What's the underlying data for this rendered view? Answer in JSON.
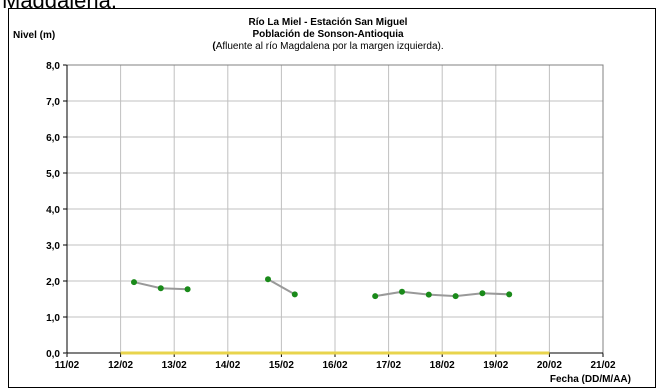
{
  "page": {
    "top_text": "Magdalena."
  },
  "chart_data": {
    "type": "line",
    "title": "Río La Miel  - Estación San Miguel",
    "subtitle": "Población de Sonson-Antioquia",
    "subtitle2_bold": "(",
    "subtitle2_rest": "Afluente al río Magdalena por la margen izquierda).",
    "ylabel": "Nivel (m)",
    "xlabel": "Fecha (DD/M/AA)",
    "ylim": [
      0,
      8
    ],
    "yticks": [
      "0,0",
      "1,0",
      "2,0",
      "3,0",
      "4,0",
      "5,0",
      "6,0",
      "7,0",
      "8,0"
    ],
    "xlim": [
      11,
      21
    ],
    "xticks": [
      "11/02",
      "12/02",
      "13/02",
      "14/02",
      "15/02",
      "16/02",
      "17/02",
      "18/02",
      "19/02",
      "20/02",
      "21/02"
    ],
    "grid": true,
    "series": [
      {
        "color": "#999999",
        "marker_color": "#1a8a1a",
        "segments": [
          [
            [
              12.25,
              1.97
            ],
            [
              12.75,
              1.8
            ],
            [
              13.25,
              1.77
            ]
          ],
          [
            [
              14.75,
              2.05
            ],
            [
              15.25,
              1.63
            ]
          ],
          [
            [
              16.75,
              1.58
            ],
            [
              17.25,
              1.7
            ],
            [
              17.75,
              1.62
            ],
            [
              18.25,
              1.58
            ],
            [
              18.75,
              1.66
            ],
            [
              19.25,
              1.63
            ]
          ]
        ]
      },
      {
        "color": "#e8d44d",
        "segments": [
          [
            [
              12.0,
              0.0
            ],
            [
              20.0,
              0.0
            ]
          ]
        ]
      }
    ]
  }
}
